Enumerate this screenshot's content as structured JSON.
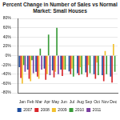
{
  "chart_data": {
    "type": "bar",
    "title": "Percent Change in Number of Sales vs Normal Market: Small Houses",
    "categories": [
      "Jan",
      "Feb",
      "Mar",
      "Apr",
      "May",
      "Jun",
      "Jul",
      "Aug",
      "Sep",
      "Oct",
      "Nov",
      "Dec"
    ],
    "series": [
      {
        "name": "2007",
        "color": "#1f4e9e",
        "values": [
          -25,
          -30,
          -35,
          -28,
          -32,
          -30,
          -34,
          -38,
          -36,
          -40,
          -42,
          -45
        ]
      },
      {
        "name": "2008",
        "color": "#d9262b",
        "values": [
          -48,
          -50,
          -45,
          -52,
          -47,
          -44,
          -40,
          -42,
          -46,
          -50,
          -55,
          -58
        ]
      },
      {
        "name": "2009",
        "color": "#f2c12e",
        "values": [
          -60,
          -55,
          -50,
          -40,
          -35,
          -30,
          -28,
          -25,
          -20,
          -15,
          10,
          25
        ]
      },
      {
        "name": "2010",
        "color": "#3a9c3a",
        "values": [
          -20,
          -10,
          15,
          45,
          60,
          -30,
          -45,
          -40,
          -38,
          -42,
          -40,
          -35
        ]
      },
      {
        "name": "2011",
        "color": "#7b3fa0",
        "values": [
          -35,
          -38,
          -30,
          -42,
          -40,
          null,
          null,
          null,
          null,
          null,
          null,
          null
        ]
      }
    ],
    "ylim": [
      -80,
      80
    ],
    "yticks": [
      {
        "value": -80,
        "label": "-80%"
      },
      {
        "value": -60,
        "label": "-60%"
      },
      {
        "value": -40,
        "label": "-40%"
      },
      {
        "value": -20,
        "label": "-20%"
      },
      {
        "value": 0,
        "label": "0%"
      },
      {
        "value": 20,
        "label": "20%"
      },
      {
        "value": 40,
        "label": "40%"
      },
      {
        "value": 60,
        "label": "60%"
      },
      {
        "value": 80,
        "label": "80%"
      }
    ],
    "grid": true,
    "legend": "bottom"
  }
}
